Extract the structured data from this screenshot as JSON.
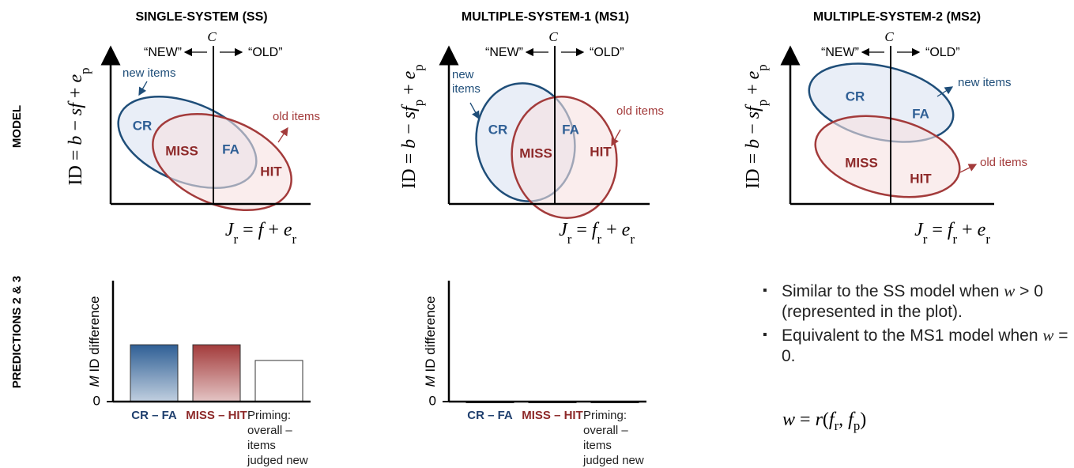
{
  "row_labels": [
    "MODEL",
    "PREDICTIONS 2 & 3"
  ],
  "panels": [
    {
      "title": "SINGLE-SYSTEM (SS)",
      "criterion": "C",
      "new_response": "“NEW”",
      "old_response": "“OLD”",
      "new_items": "new items",
      "old_items": "old items",
      "regions": [
        "CR",
        "FA",
        "MISS",
        "HIT"
      ],
      "y_label": [
        {
          "text": "ID = ",
          "style": "normal"
        },
        {
          "text": "b",
          "style": "italic"
        },
        {
          "text": " − ",
          "style": "normal"
        },
        {
          "text": "sf",
          "style": "italic"
        },
        {
          "text": " + ",
          "style": "normal"
        },
        {
          "text": "e",
          "style": "italic"
        },
        {
          "text": "p",
          "style": "sub"
        }
      ],
      "x_label": [
        {
          "text": "J",
          "style": "italic"
        },
        {
          "text": "r",
          "style": "sub"
        },
        {
          "text": " = ",
          "style": "normal"
        },
        {
          "text": "f",
          "style": "italic"
        },
        {
          "text": " + ",
          "style": "normal"
        },
        {
          "text": "e",
          "style": "italic"
        },
        {
          "text": "r",
          "style": "sub"
        }
      ]
    },
    {
      "title": "MULTIPLE-SYSTEM-1 (MS1)",
      "criterion": "C",
      "new_response": "“NEW”",
      "old_response": "“OLD”",
      "new_items": "new items",
      "old_items": "old items",
      "regions": [
        "CR",
        "FA",
        "MISS",
        "HIT"
      ],
      "y_label": [
        {
          "text": "ID = ",
          "style": "normal"
        },
        {
          "text": "b",
          "style": "italic"
        },
        {
          "text": " − ",
          "style": "normal"
        },
        {
          "text": "sf",
          "style": "italic"
        },
        {
          "text": "p",
          "style": "sub"
        },
        {
          "text": " + ",
          "style": "normal"
        },
        {
          "text": "e",
          "style": "italic"
        },
        {
          "text": "p",
          "style": "sub"
        }
      ],
      "x_label": [
        {
          "text": "J",
          "style": "italic"
        },
        {
          "text": "r",
          "style": "sub"
        },
        {
          "text": " = ",
          "style": "normal"
        },
        {
          "text": "f",
          "style": "italic"
        },
        {
          "text": "r",
          "style": "sub"
        },
        {
          "text": " + ",
          "style": "normal"
        },
        {
          "text": "e",
          "style": "italic"
        },
        {
          "text": "r",
          "style": "sub"
        }
      ]
    },
    {
      "title": "MULTIPLE-SYSTEM-2 (MS2)",
      "criterion": "C",
      "new_response": "“NEW”",
      "old_response": "“OLD”",
      "new_items": "new items",
      "old_items": "old items",
      "regions": [
        "CR",
        "FA",
        "MISS",
        "HIT"
      ],
      "y_label": [
        {
          "text": "ID = ",
          "style": "normal"
        },
        {
          "text": "b",
          "style": "italic"
        },
        {
          "text": " − ",
          "style": "normal"
        },
        {
          "text": "sf",
          "style": "italic"
        },
        {
          "text": "p",
          "style": "sub"
        },
        {
          "text": " + ",
          "style": "normal"
        },
        {
          "text": "e",
          "style": "italic"
        },
        {
          "text": "p",
          "style": "sub"
        }
      ],
      "x_label": [
        {
          "text": "J",
          "style": "italic"
        },
        {
          "text": "r",
          "style": "sub"
        },
        {
          "text": " = ",
          "style": "normal"
        },
        {
          "text": "f",
          "style": "italic"
        },
        {
          "text": "r",
          "style": "sub"
        },
        {
          "text": " + ",
          "style": "normal"
        },
        {
          "text": "e",
          "style": "italic"
        },
        {
          "text": "r",
          "style": "sub"
        }
      ]
    }
  ],
  "chart_data": [
    {
      "type": "bar",
      "ylabel": [
        {
          "text": "M",
          "style": "italic"
        },
        {
          "text": " ID difference",
          "style": "normal"
        }
      ],
      "categories": [
        "CR – FA",
        "MISS – HIT",
        "Priming: overall – items judged new"
      ],
      "values": [
        0.47,
        0.47,
        0.34
      ],
      "colors": [
        "#2f5f95",
        "#a33b3b",
        "#ffffff"
      ],
      "label_colors": [
        "#1f3f6e",
        "#8e2a2a",
        "#222222"
      ],
      "ylim": [
        0,
        1
      ],
      "yticks": [
        0
      ]
    },
    {
      "type": "bar",
      "ylabel": [
        {
          "text": "M",
          "style": "italic"
        },
        {
          "text": " ID difference",
          "style": "normal"
        }
      ],
      "categories": [
        "CR – FA",
        "MISS – HIT",
        "Priming: overall – items judged new"
      ],
      "values": [
        0,
        0,
        0
      ],
      "colors": [
        "#2f5f95",
        "#a33b3b",
        "#ffffff"
      ],
      "label_colors": [
        "#1f3f6e",
        "#8e2a2a",
        "#222222"
      ],
      "ylim": [
        0,
        1
      ],
      "yticks": [
        0
      ]
    }
  ],
  "bullets": [
    [
      {
        "text": "Similar to the SS model when ",
        "style": "normal"
      },
      {
        "text": "w",
        "style": "italic"
      },
      {
        "text": " > 0 (represented in the plot).",
        "style": "normal"
      }
    ],
    [
      {
        "text": "Equivalent to the MS1 model when ",
        "style": "normal"
      },
      {
        "text": "w",
        "style": "italic"
      },
      {
        "text": " = 0.",
        "style": "normal"
      }
    ]
  ],
  "formula": [
    {
      "text": "w",
      "style": "italic"
    },
    {
      "text": " = ",
      "style": "normal"
    },
    {
      "text": "r",
      "style": "italic"
    },
    {
      "text": "(",
      "style": "normal"
    },
    {
      "text": "f",
      "style": "italic"
    },
    {
      "text": "r",
      "style": "sub"
    },
    {
      "text": ", ",
      "style": "normal"
    },
    {
      "text": "f",
      "style": "italic"
    },
    {
      "text": "p",
      "style": "sub"
    },
    {
      "text": ")",
      "style": "normal"
    }
  ]
}
